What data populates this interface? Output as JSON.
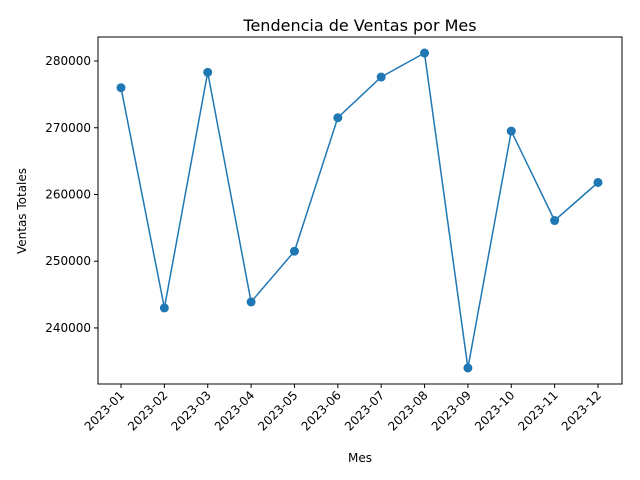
{
  "chart_data": {
    "type": "line",
    "title": "Tendencia de Ventas por Mes",
    "xlabel": "Mes",
    "ylabel": "Ventas Totales",
    "categories": [
      "2023-01",
      "2023-02",
      "2023-03",
      "2023-04",
      "2023-05",
      "2023-06",
      "2023-07",
      "2023-08",
      "2023-09",
      "2023-10",
      "2023-11",
      "2023-12"
    ],
    "series": [
      {
        "values": [
          276000,
          243000,
          278300,
          243900,
          251500,
          271500,
          277600,
          281200,
          234000,
          269500,
          256100,
          261800
        ]
      }
    ],
    "ylim": [
      231600,
      283600
    ],
    "yticks": [
      240000,
      250000,
      260000,
      270000,
      280000
    ],
    "ytick_labels": [
      "240000",
      "250000",
      "260000",
      "270000",
      "280000"
    ],
    "grid": false,
    "markers": true,
    "color": "#1f77b4"
  }
}
